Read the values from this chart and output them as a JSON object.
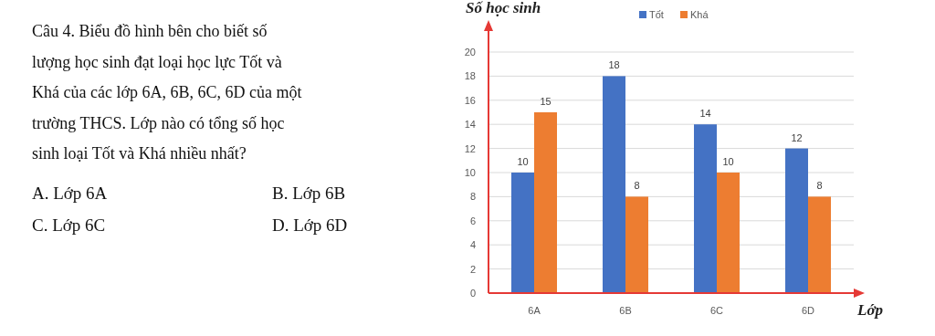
{
  "chart_data": {
    "type": "bar",
    "ylabel": "Số học sinh",
    "xlabel": "Lớp",
    "categories": [
      "6A",
      "6B",
      "6C",
      "6D"
    ],
    "series": [
      {
        "name": "Tốt",
        "color": "#4472c4",
        "values": [
          10,
          18,
          14,
          12
        ]
      },
      {
        "name": "Khá",
        "color": "#ed7d31",
        "values": [
          15,
          8,
          10,
          8
        ]
      }
    ],
    "ylim": [
      0,
      20
    ],
    "yticks": [
      0,
      2,
      4,
      6,
      8,
      10,
      12,
      14,
      16,
      18,
      20
    ],
    "grid": "y",
    "legend": "top right",
    "data_labels": true,
    "annotations": [
      "Câu 4. Biểu đồ hình bên cho biết số lượng học sinh đạt loại học lực Tốt và Khá của các lớp 6A, 6B, 6C, 6D của một trường THCS. Lớp nào có tổng số học sinh loại Tốt và Khá nhiều nhất?",
      "A. Lớp 6A",
      "B. Lớp 6B",
      "C. Lớp 6C",
      "D. Lớp 6D"
    ]
  }
}
